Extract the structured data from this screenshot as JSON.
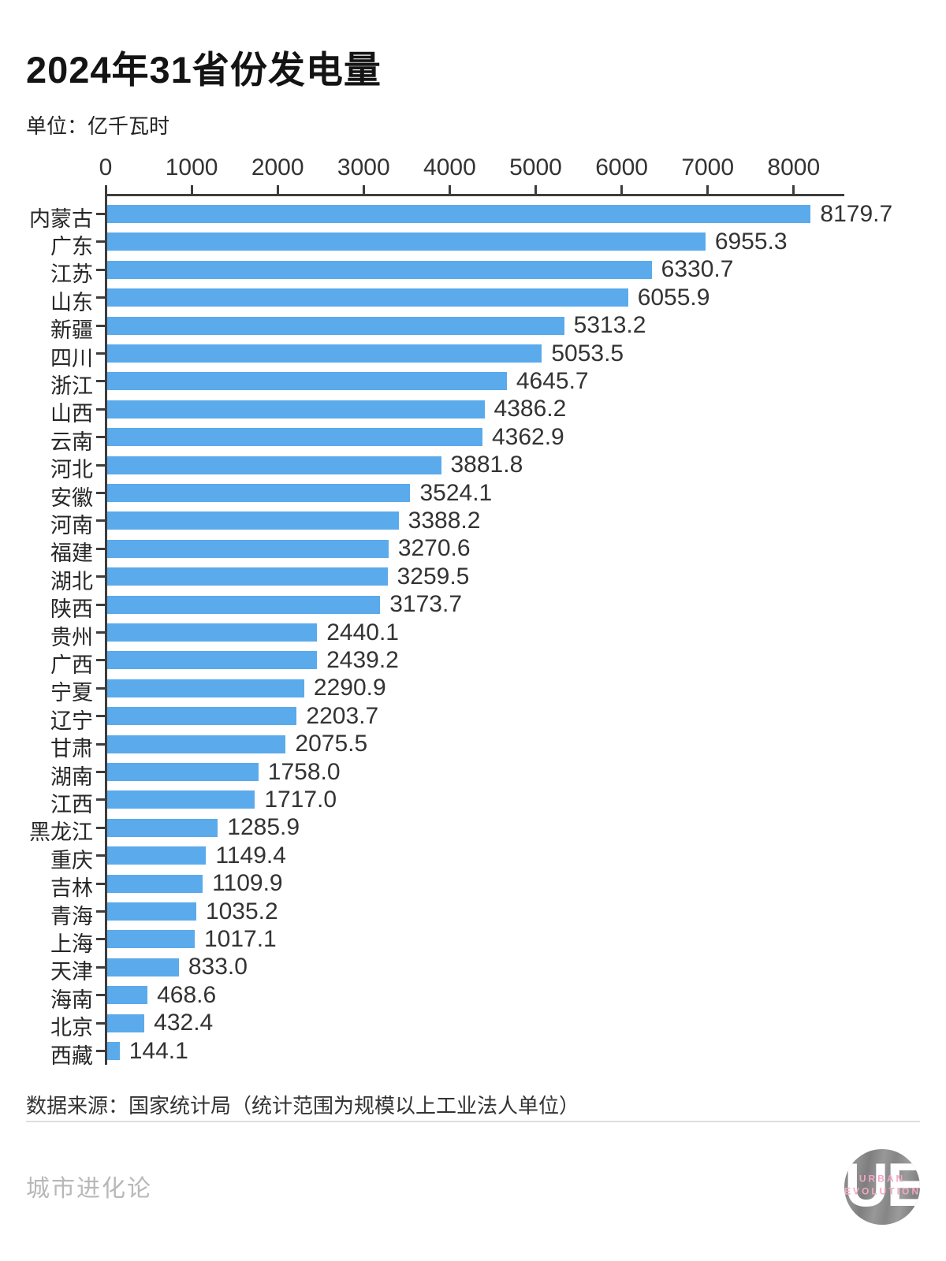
{
  "title": "2024年31省份发电量",
  "subtitle": "单位：亿千瓦时",
  "source": "数据来源：国家统计局（统计范围为规模以上工业法人单位）",
  "watermark": "城市进化论",
  "logo": {
    "initials": "UE",
    "line1": "URBAN",
    "line2": "EVOLUTION"
  },
  "colors": {
    "bar": "#5aaaec",
    "axis": "#3d3d3d",
    "label": "#262626",
    "value": "#333333"
  },
  "chart_data": {
    "type": "bar",
    "orientation": "horizontal",
    "title": "2024年31省份发电量",
    "unit": "亿千瓦时",
    "x_ticks": [
      0,
      1000,
      2000,
      3000,
      4000,
      5000,
      6000,
      7000,
      8000
    ],
    "xlim": [
      0,
      8580
    ],
    "grid": false,
    "legend": "none",
    "categories": [
      "内蒙古",
      "广东",
      "江苏",
      "山东",
      "新疆",
      "四川",
      "浙江",
      "山西",
      "云南",
      "河北",
      "安徽",
      "河南",
      "福建",
      "湖北",
      "陕西",
      "贵州",
      "广西",
      "宁夏",
      "辽宁",
      "甘肃",
      "湖南",
      "江西",
      "黑龙江",
      "重庆",
      "吉林",
      "青海",
      "上海",
      "天津",
      "海南",
      "北京",
      "西藏"
    ],
    "values": [
      8179.7,
      6955.3,
      6330.7,
      6055.9,
      5313.2,
      5053.5,
      4645.7,
      4386.2,
      4362.9,
      3881.8,
      3524.1,
      3388.2,
      3270.6,
      3259.5,
      3173.7,
      2440.1,
      2439.2,
      2290.9,
      2203.7,
      2075.5,
      1758.0,
      1717.0,
      1285.9,
      1149.4,
      1109.9,
      1035.2,
      1017.1,
      833.0,
      468.6,
      432.4,
      144.1
    ],
    "value_labels": [
      "8179.7",
      "6955.3",
      "6330.7",
      "6055.9",
      "5313.2",
      "5053.5",
      "4645.7",
      "4386.2",
      "4362.9",
      "3881.8",
      "3524.1",
      "3388.2",
      "3270.6",
      "3259.5",
      "3173.7",
      "2440.1",
      "2439.2",
      "2290.9",
      "2203.7",
      "2075.5",
      "1758.0",
      "1717.0",
      "1285.9",
      "1149.4",
      "1109.9",
      "1035.2",
      "1017.1",
      "833.0",
      "468.6",
      "432.4",
      "144.1"
    ]
  }
}
